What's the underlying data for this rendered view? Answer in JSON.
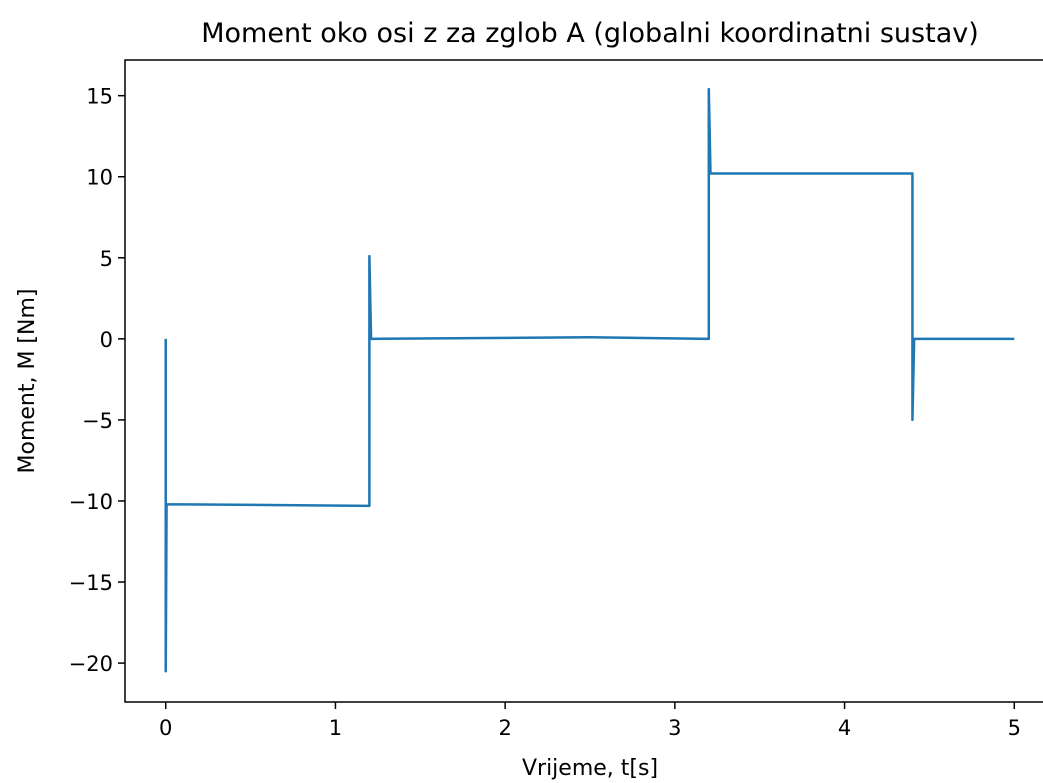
{
  "chart_data": {
    "type": "line",
    "title": "Moment oko osi z za zglob A (globalni koordinatni sustav)",
    "x_label": "Vrijeme, t[s]",
    "y_label": "Moment, M [Nm]",
    "x": [
      0,
      0,
      0.005,
      1.2,
      1.2,
      1.21,
      2.5,
      3.2,
      3.2,
      3.21,
      4.4,
      4.4,
      4.41,
      5
    ],
    "series": [
      {
        "name": "M",
        "color": "#1f77b4",
        "values": [
          0,
          -20.5,
          -10.2,
          -10.3,
          5.1,
          0,
          0.1,
          0,
          15.4,
          10.2,
          10.2,
          -5,
          0,
          0
        ]
      }
    ],
    "xlim": [
      -0.24,
      5.24
    ],
    "ylim": [
      -22.4,
      17.2
    ],
    "xticks": [
      0,
      1,
      2,
      3,
      4,
      5
    ],
    "yticks": [
      {
        "value": -20,
        "label": "−20"
      },
      {
        "value": -15,
        "label": "−15"
      },
      {
        "value": -10,
        "label": "−10"
      },
      {
        "value": -5,
        "label": "−5"
      },
      0,
      5,
      10,
      15
    ]
  }
}
